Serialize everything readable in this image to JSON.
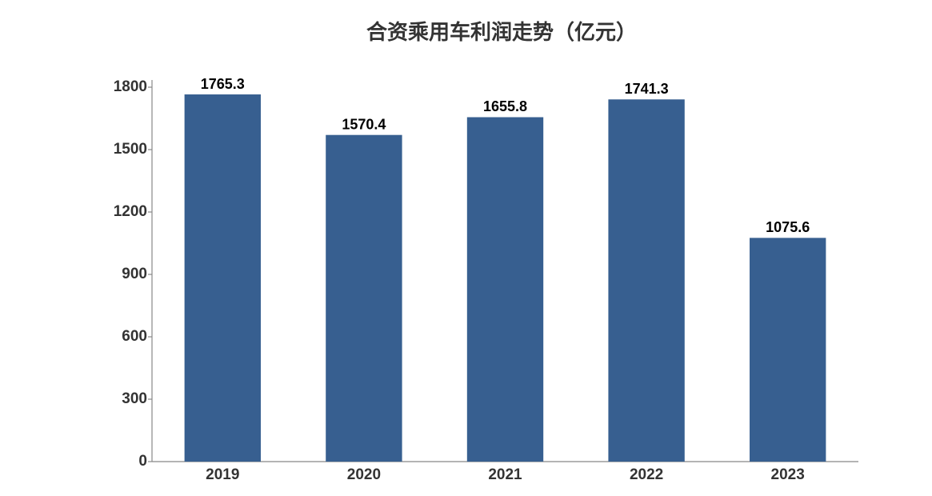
{
  "chart_data": {
    "type": "bar",
    "title": "合资乘用车利润走势（亿元）",
    "categories": [
      "2019",
      "2020",
      "2021",
      "2022",
      "2023"
    ],
    "values": [
      1765.3,
      1570.4,
      1655.8,
      1741.3,
      1075.6
    ],
    "color": "#375f90",
    "ylim": [
      0,
      1800
    ],
    "yticks": [
      0,
      300,
      600,
      900,
      1200,
      1500,
      1800
    ],
    "grid": false
  }
}
